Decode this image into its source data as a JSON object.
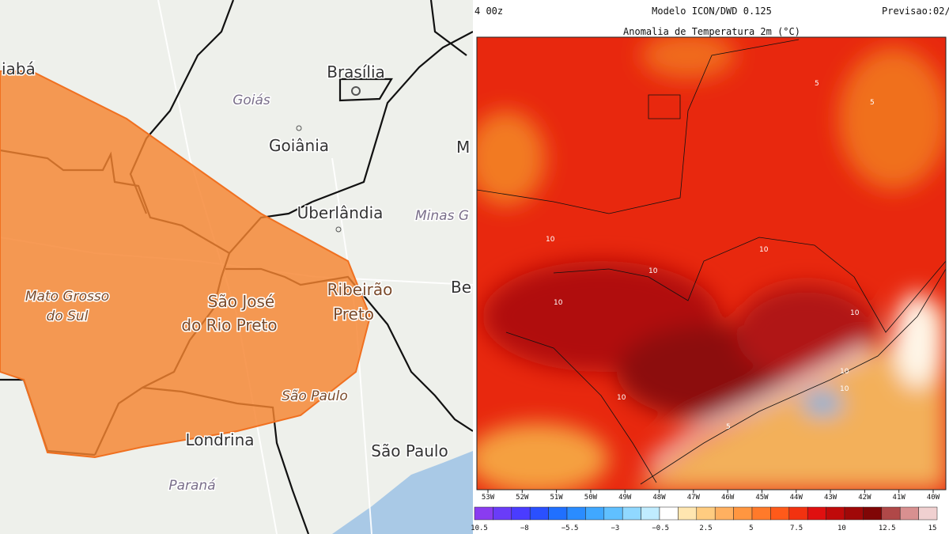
{
  "left_map": {
    "labels": [
      "iabá",
      "Brasília",
      "Goiás",
      "Goiânia",
      "M",
      "Uberlândia",
      "Minas G",
      "Mato Grosso",
      "do Sul",
      "São José",
      "do Rio Preto",
      "Ribeirão",
      "Preto",
      "Be",
      "São Paulo",
      "Londrina",
      "São Paulo",
      "Paraná"
    ]
  },
  "right_map": {
    "time": "4 00z",
    "model": "Modelo ICON/DWD 0.125",
    "forecast": "Previsao:02/",
    "title": "Anomalia de Temperatura 2m (°C)",
    "contour_labels": [
      "5",
      "5",
      "10",
      "10",
      "10",
      "10",
      "10",
      "10",
      "10",
      "10",
      "5"
    ],
    "longitudes": [
      "53W",
      "52W",
      "51W",
      "50W",
      "49W",
      "48W",
      "47W",
      "46W",
      "45W",
      "44W",
      "43W",
      "42W",
      "41W",
      "40W"
    ],
    "colorbar_labels": [
      "10.5",
      "−8",
      "−5.5",
      "−3",
      "−0.5",
      "2.5",
      "5",
      "7.5",
      "10",
      "12.5",
      "15"
    ]
  }
}
